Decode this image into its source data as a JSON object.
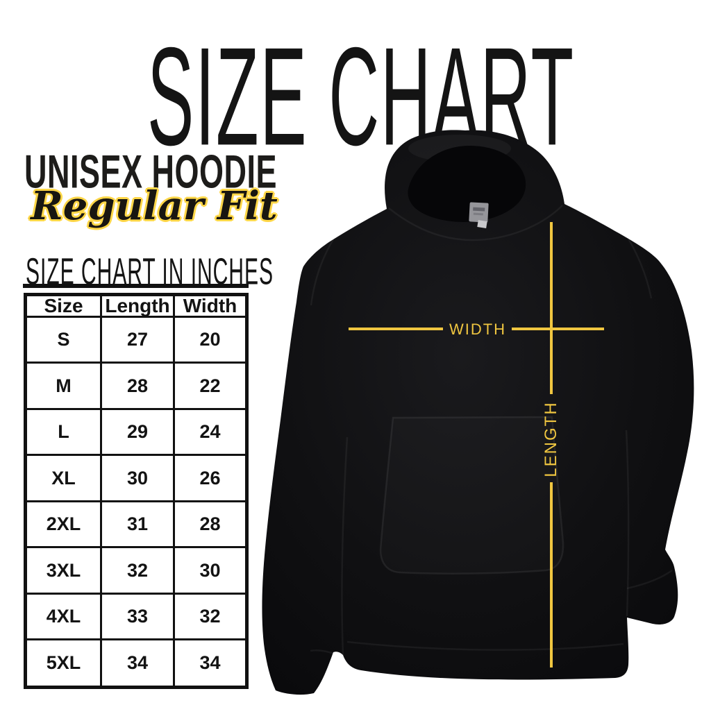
{
  "title": "SIZE CHART",
  "product": {
    "name": "UNISEX HOODIE",
    "fit": "Regular Fit"
  },
  "section_heading": "SIZE CHART IN INCHES",
  "size_table": {
    "columns": [
      "Size",
      "Length",
      "Width"
    ],
    "rows": [
      {
        "size": "S",
        "length": "27",
        "width": "20"
      },
      {
        "size": "M",
        "length": "28",
        "width": "22"
      },
      {
        "size": "L",
        "length": "29",
        "width": "24"
      },
      {
        "size": "XL",
        "length": "30",
        "width": "26"
      },
      {
        "size": "2XL",
        "length": "31",
        "width": "28"
      },
      {
        "size": "3XL",
        "length": "32",
        "width": "30"
      },
      {
        "size": "4XL",
        "length": "33",
        "width": "32"
      },
      {
        "size": "5XL",
        "length": "34",
        "width": "34"
      }
    ]
  },
  "measurements": {
    "width_label": "WIDTH",
    "length_label": "LENGTH"
  },
  "colors": {
    "accent_yellow": "#f0c640",
    "outline_yellow": "#ffd748",
    "ink_black": "#141414",
    "hoodie_black": "#0c0c0e",
    "background": "#ffffff"
  },
  "chart_data": {
    "type": "table",
    "title": "SIZE CHART IN INCHES",
    "unit": "inches",
    "columns": [
      "Size",
      "Length",
      "Width"
    ],
    "rows": [
      [
        "S",
        27,
        20
      ],
      [
        "M",
        28,
        22
      ],
      [
        "L",
        29,
        24
      ],
      [
        "XL",
        30,
        26
      ],
      [
        "2XL",
        31,
        28
      ],
      [
        "3XL",
        32,
        30
      ],
      [
        "4XL",
        33,
        32
      ],
      [
        "5XL",
        34,
        34
      ]
    ]
  }
}
